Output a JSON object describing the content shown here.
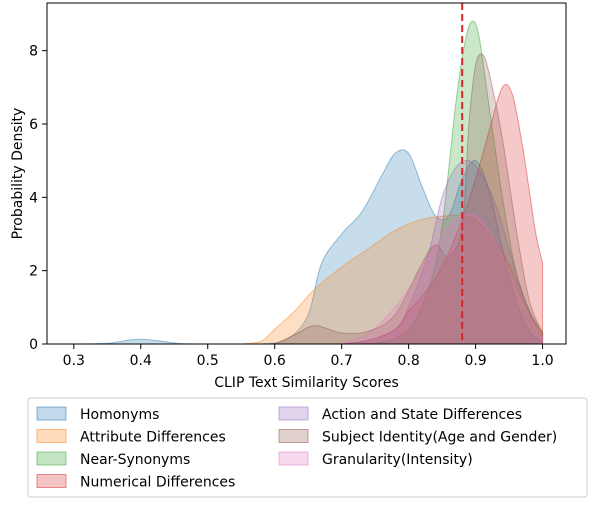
{
  "chart_data": {
    "type": "area",
    "title": "",
    "xlabel": "CLIP Text Similarity Scores",
    "ylabel": "Probability Density",
    "xlim": [
      0.26,
      1.035
    ],
    "ylim": [
      0,
      9.3
    ],
    "x_ticks": [
      "0.3",
      "0.4",
      "0.5",
      "0.6",
      "0.7",
      "0.8",
      "0.9",
      "1.0"
    ],
    "y_ticks": [
      "0",
      "2",
      "4",
      "6",
      "8"
    ],
    "grid": false,
    "legend_position": "bottom",
    "threshold": {
      "x": 0.88,
      "color": "#d62728",
      "style": "dashed"
    },
    "series": [
      {
        "name": "Homonyms",
        "color": "#1f77b4",
        "points": [
          [
            0.31,
            0.0
          ],
          [
            0.35,
            0.02
          ],
          [
            0.38,
            0.1
          ],
          [
            0.4,
            0.13
          ],
          [
            0.43,
            0.08
          ],
          [
            0.46,
            0.01
          ],
          [
            0.5,
            0.0
          ],
          [
            0.58,
            0.0
          ],
          [
            0.62,
            0.15
          ],
          [
            0.65,
            0.8
          ],
          [
            0.67,
            2.2
          ],
          [
            0.7,
            3.0
          ],
          [
            0.73,
            3.6
          ],
          [
            0.76,
            4.6
          ],
          [
            0.78,
            5.2
          ],
          [
            0.8,
            5.2
          ],
          [
            0.82,
            4.3
          ],
          [
            0.84,
            3.5
          ],
          [
            0.86,
            3.5
          ],
          [
            0.88,
            4.5
          ],
          [
            0.9,
            5.0
          ],
          [
            0.92,
            4.2
          ],
          [
            0.94,
            2.6
          ],
          [
            0.96,
            1.2
          ],
          [
            0.98,
            0.35
          ],
          [
            1.0,
            0.05
          ]
        ]
      },
      {
        "name": "Attribute Differences",
        "color": "#ff7f0e",
        "points": [
          [
            0.55,
            0.0
          ],
          [
            0.58,
            0.08
          ],
          [
            0.6,
            0.4
          ],
          [
            0.63,
            0.9
          ],
          [
            0.66,
            1.5
          ],
          [
            0.7,
            2.1
          ],
          [
            0.74,
            2.6
          ],
          [
            0.78,
            3.1
          ],
          [
            0.82,
            3.4
          ],
          [
            0.86,
            3.5
          ],
          [
            0.88,
            3.5
          ],
          [
            0.9,
            3.4
          ],
          [
            0.92,
            3.0
          ],
          [
            0.94,
            2.5
          ],
          [
            0.96,
            1.8
          ],
          [
            0.98,
            0.9
          ],
          [
            1.0,
            0.3
          ]
        ]
      },
      {
        "name": "Near-Synonyms",
        "color": "#2ca02c",
        "points": [
          [
            0.72,
            0.0
          ],
          [
            0.76,
            0.05
          ],
          [
            0.8,
            0.4
          ],
          [
            0.83,
            1.5
          ],
          [
            0.85,
            3.2
          ],
          [
            0.87,
            6.5
          ],
          [
            0.885,
            8.3
          ],
          [
            0.895,
            8.8
          ],
          [
            0.905,
            8.4
          ],
          [
            0.92,
            6.5
          ],
          [
            0.94,
            4.0
          ],
          [
            0.96,
            2.0
          ],
          [
            0.98,
            0.9
          ],
          [
            1.0,
            0.3
          ]
        ]
      },
      {
        "name": "Numerical Differences",
        "color": "#d62728",
        "points": [
          [
            0.7,
            0.0
          ],
          [
            0.74,
            0.1
          ],
          [
            0.78,
            0.4
          ],
          [
            0.8,
            0.9
          ],
          [
            0.82,
            1.3
          ],
          [
            0.84,
            1.8
          ],
          [
            0.86,
            2.5
          ],
          [
            0.88,
            3.4
          ],
          [
            0.9,
            4.5
          ],
          [
            0.92,
            5.8
          ],
          [
            0.94,
            7.0
          ],
          [
            0.955,
            6.8
          ],
          [
            0.97,
            5.4
          ],
          [
            0.98,
            4.2
          ],
          [
            0.99,
            3.0
          ],
          [
            1.0,
            2.2
          ]
        ]
      },
      {
        "name": "Action and State Differences",
        "color": "#9467bd",
        "points": [
          [
            0.7,
            0.0
          ],
          [
            0.74,
            0.1
          ],
          [
            0.78,
            0.4
          ],
          [
            0.8,
            1.0
          ],
          [
            0.83,
            2.5
          ],
          [
            0.85,
            4.0
          ],
          [
            0.87,
            4.8
          ],
          [
            0.89,
            5.0
          ],
          [
            0.91,
            4.6
          ],
          [
            0.93,
            3.8
          ],
          [
            0.95,
            2.6
          ],
          [
            0.97,
            1.4
          ],
          [
            0.99,
            0.5
          ],
          [
            1.0,
            0.2
          ]
        ]
      },
      {
        "name": "Subject Identity(Age and Gender)",
        "color": "#8c564b",
        "points": [
          [
            0.6,
            0.0
          ],
          [
            0.63,
            0.25
          ],
          [
            0.66,
            0.5
          ],
          [
            0.7,
            0.3
          ],
          [
            0.74,
            0.35
          ],
          [
            0.78,
            0.8
          ],
          [
            0.82,
            2.2
          ],
          [
            0.84,
            2.7
          ],
          [
            0.86,
            2.4
          ],
          [
            0.88,
            3.2
          ],
          [
            0.89,
            6.0
          ],
          [
            0.9,
            7.6
          ],
          [
            0.91,
            7.9
          ],
          [
            0.92,
            7.4
          ],
          [
            0.94,
            5.6
          ],
          [
            0.96,
            3.2
          ],
          [
            0.98,
            1.2
          ],
          [
            1.0,
            0.3
          ]
        ]
      },
      {
        "name": "Granularity(Intensity)",
        "color": "#e377c2",
        "points": [
          [
            0.7,
            0.0
          ],
          [
            0.74,
            0.3
          ],
          [
            0.77,
            0.8
          ],
          [
            0.8,
            1.5
          ],
          [
            0.83,
            2.4
          ],
          [
            0.86,
            3.2
          ],
          [
            0.88,
            3.5
          ],
          [
            0.9,
            3.5
          ],
          [
            0.92,
            3.1
          ],
          [
            0.94,
            2.4
          ],
          [
            0.96,
            1.5
          ],
          [
            0.98,
            0.7
          ],
          [
            1.0,
            0.2
          ]
        ]
      }
    ]
  }
}
